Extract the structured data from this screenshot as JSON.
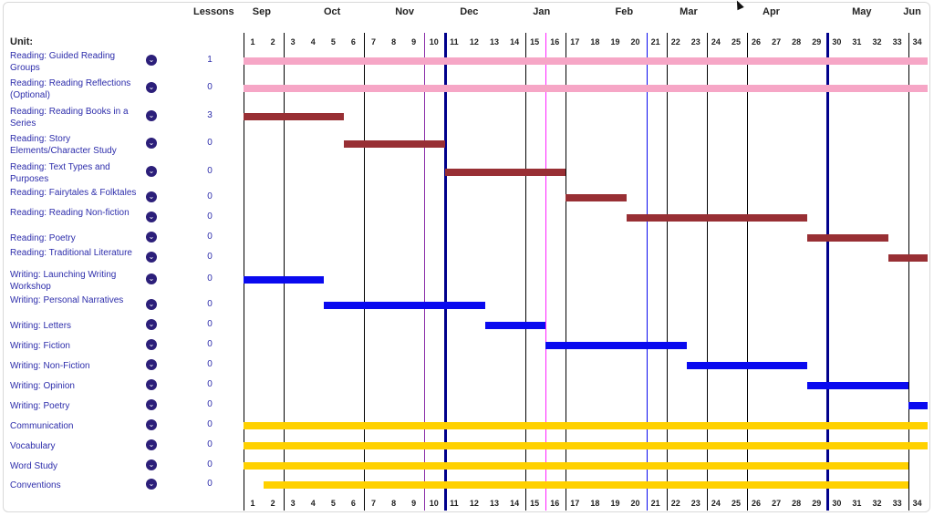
{
  "header": {
    "lessons_label": "Lessons",
    "unit_label": "Unit:"
  },
  "months": [
    "Sep",
    "Oct",
    "Nov",
    "Dec",
    "Jan",
    "Feb",
    "Mar",
    "Apr",
    "May",
    "Jun"
  ],
  "weeks": [
    "1",
    "2",
    "3",
    "4",
    "5",
    "6",
    "7",
    "8",
    "9",
    "10",
    "11",
    "12",
    "13",
    "14",
    "15",
    "16",
    "17",
    "18",
    "19",
    "20",
    "21",
    "22",
    "23",
    "24",
    "25",
    "26",
    "27",
    "28",
    "29",
    "30",
    "31",
    "32",
    "33",
    "34"
  ],
  "colors": {
    "guided": "#f6a6c6",
    "reading": "#982f34",
    "writing": "#0a0aef",
    "other": "#ffd100",
    "label": "#2d2dab",
    "chevron": "#2c1f7a",
    "marker_purple": "#8a2da8",
    "marker_magenta": "#ff22ff",
    "marker_blue": "#0a0aef",
    "marker_navy": "#00008b"
  },
  "units": [
    {
      "label": "Reading: Guided Reading Groups",
      "lessons": "1",
      "start_week": 1,
      "end_week": 34,
      "category": "guided"
    },
    {
      "label": "Reading: Reading Reflections (Optional)",
      "lessons": "0",
      "start_week": 1,
      "end_week": 34,
      "category": "guided"
    },
    {
      "label": "Reading: Reading Books in a Series",
      "lessons": "3",
      "start_week": 1,
      "end_week": 5,
      "category": "reading"
    },
    {
      "label": "Reading: Story Elements/Character Study",
      "lessons": "0",
      "start_week": 6,
      "end_week": 10,
      "category": "reading"
    },
    {
      "label": "Reading: Text Types and Purposes",
      "lessons": "0",
      "start_week": 11,
      "end_week": 16,
      "category": "reading"
    },
    {
      "label": "Reading: Fairytales & Folktales",
      "lessons": "0",
      "start_week": 17,
      "end_week": 19,
      "category": "reading"
    },
    {
      "label": "Reading: Reading Non-fiction",
      "lessons": "0",
      "start_week": 20,
      "end_week": 28,
      "category": "reading"
    },
    {
      "label": "Reading: Poetry",
      "lessons": "0",
      "start_week": 29,
      "end_week": 32,
      "category": "reading"
    },
    {
      "label": "Reading: Traditional Literature",
      "lessons": "0",
      "start_week": 33,
      "end_week": 34,
      "category": "reading"
    },
    {
      "label": "Writing: Launching Writing Workshop",
      "lessons": "0",
      "start_week": 1,
      "end_week": 4,
      "category": "writing"
    },
    {
      "label": "Writing: Personal Narratives",
      "lessons": "0",
      "start_week": 5,
      "end_week": 12,
      "category": "writing"
    },
    {
      "label": "Writing: Letters",
      "lessons": "0",
      "start_week": 13,
      "end_week": 15,
      "category": "writing"
    },
    {
      "label": "Writing: Fiction",
      "lessons": "0",
      "start_week": 16,
      "end_week": 22,
      "category": "writing"
    },
    {
      "label": "Writing: Non-Fiction",
      "lessons": "0",
      "start_week": 23,
      "end_week": 28,
      "category": "writing"
    },
    {
      "label": "Writing: Opinion",
      "lessons": "0",
      "start_week": 29,
      "end_week": 33,
      "category": "writing"
    },
    {
      "label": "Writing: Poetry",
      "lessons": "0",
      "start_week": 34,
      "end_week": 34,
      "category": "writing"
    },
    {
      "label": "Communication",
      "lessons": "0",
      "start_week": 1,
      "end_week": 34,
      "category": "other"
    },
    {
      "label": "Vocabulary",
      "lessons": "0",
      "start_week": 1,
      "end_week": 34,
      "category": "other"
    },
    {
      "label": "Word Study",
      "lessons": "0",
      "start_week": 1,
      "end_week": 33,
      "category": "other"
    },
    {
      "label": "Conventions",
      "lessons": "0",
      "start_week": 2,
      "end_week": 33,
      "category": "other"
    }
  ]
}
